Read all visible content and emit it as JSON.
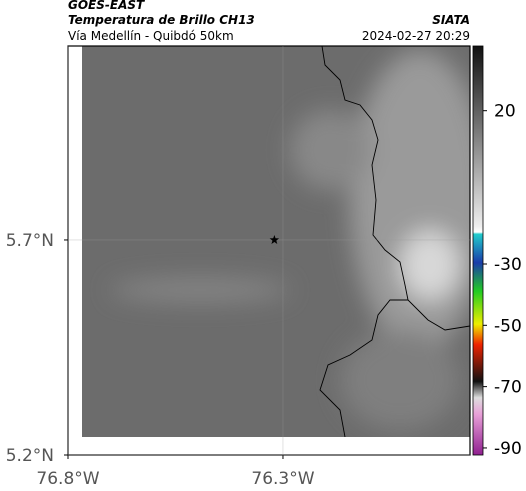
{
  "header": {
    "title": "GOES-EAST",
    "subtitle": "Temperatura de Brillo CH13",
    "location": "Vía Medellín - Quibdó 50km",
    "agency": "SIATA",
    "datetime": "2024-02-27 20:29"
  },
  "map": {
    "xlim": [
      -76.8,
      -75.865
    ],
    "ylim": [
      5.2,
      6.151
    ],
    "xticks": [
      {
        "value": -76.8,
        "label": "76.8°W"
      },
      {
        "value": -76.3,
        "label": "76.3°W"
      }
    ],
    "yticks": [
      {
        "value": 5.2,
        "label": "5.2°N"
      },
      {
        "value": 5.7,
        "label": "5.7°N"
      }
    ],
    "marker": {
      "lon": -76.32,
      "lat": 5.7
    }
  },
  "colorbar": {
    "lim": [
      -92.3,
      41.1
    ],
    "ticks": [
      20,
      -30,
      -50,
      -70,
      -90
    ]
  }
}
